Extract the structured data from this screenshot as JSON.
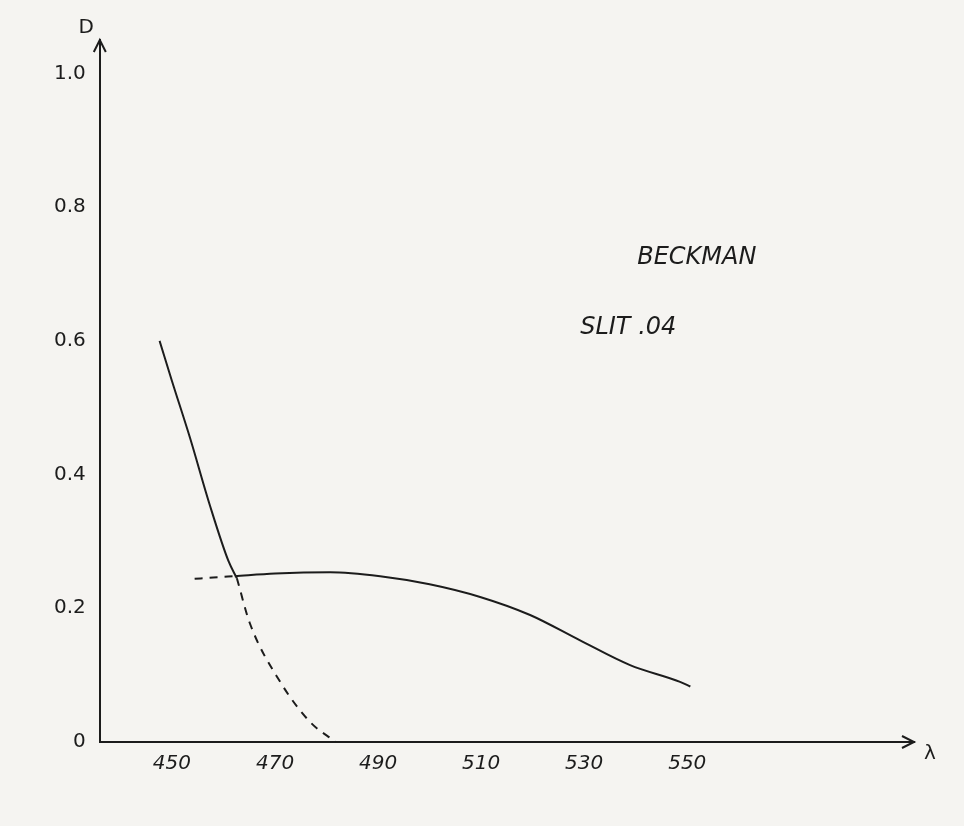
{
  "chart_data": {
    "type": "line",
    "x_label": "λ",
    "y_label": "D",
    "annotations": [
      "BECKMAN",
      "SLIT .04"
    ],
    "xlim": [
      436,
      594
    ],
    "xticks": [
      450,
      470,
      490,
      510,
      530,
      550
    ],
    "ylim": [
      0,
      1.05
    ],
    "yticks": [
      0,
      0.2,
      0.4,
      0.6,
      0.8,
      {
        "value": 1,
        "label": "1.0"
      }
    ],
    "grid": false,
    "series": [
      {
        "color": "#1c1c1c",
        "line_style": "solid",
        "x": [
          447.6,
          450.0,
          453.5,
          457.4,
          461.0,
          462.6
        ],
        "values": [
          0.6,
          0.54,
          0.455,
          0.353,
          0.27,
          0.245
        ]
      },
      {
        "color": "#1c1c1c",
        "line_style": "dashed",
        "x": [
          462.6,
          465.1,
          471.0,
          476.8,
          481.8
        ],
        "values": [
          0.245,
          0.178,
          0.09,
          0.03,
          0
        ]
      },
      {
        "color": "#1c1c1c",
        "line_style": "dashed",
        "x": [
          454.4,
          458.0,
          462.2
        ],
        "values": [
          0.244,
          0.246,
          0.248
        ]
      },
      {
        "color": "#1c1c1c",
        "line_style": "solid",
        "x": [
          462.2,
          470.0,
          480.7,
          490.4,
          500.0,
          509.8,
          519.5,
          529.2,
          538.9,
          548.6,
          550.6
        ],
        "values": [
          0.248,
          0.252,
          0.254,
          0.248,
          0.236,
          0.217,
          0.19,
          0.152,
          0.115,
          0.09,
          0.083
        ]
      }
    ]
  }
}
